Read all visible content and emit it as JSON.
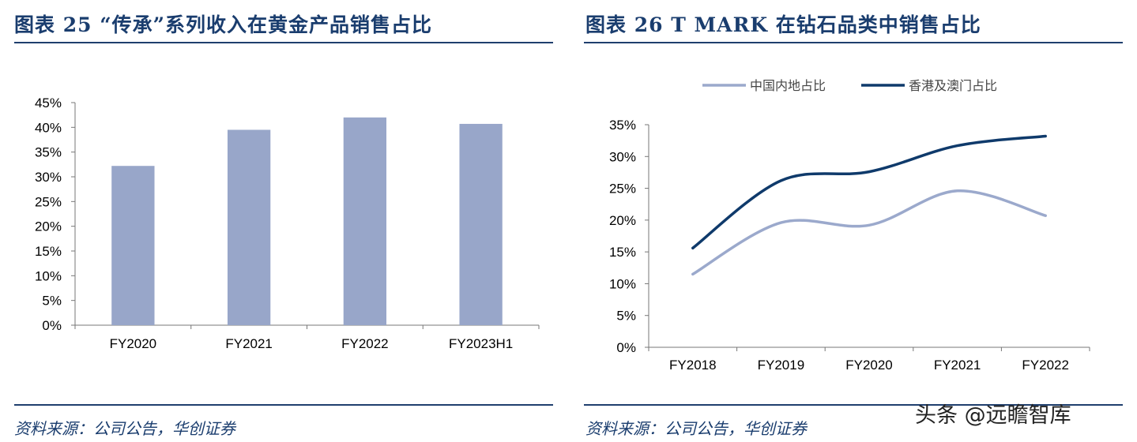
{
  "panels": [
    {
      "title": "图表 25    “传承”系列收入在黄金产品销售占比",
      "source": "资料来源：公司公告，华创证券"
    },
    {
      "title": "图表 26    T MARK 在钻石品类中销售占比",
      "source": "资料来源：公司公告，华创证券"
    }
  ],
  "watermark": "头条 @远瞻智库",
  "colors": {
    "bar": "#98a6c9",
    "mainland": "#9ba9cc",
    "hkmacau": "#0f3a6b",
    "axis": "#777777",
    "rule": "#1f3f6e"
  },
  "chart_data": [
    {
      "type": "bar",
      "title": "“传承”系列收入在黄金产品销售占比",
      "categories": [
        "FY2020",
        "FY2021",
        "FY2022",
        "FY2023H1"
      ],
      "values": [
        32.2,
        39.5,
        42.0,
        40.7
      ],
      "ylim": [
        0,
        45
      ],
      "yticks": [
        0,
        5,
        10,
        15,
        20,
        25,
        30,
        35,
        40,
        45
      ],
      "ytick_labels": [
        "0%",
        "5%",
        "10%",
        "15%",
        "20%",
        "25%",
        "30%",
        "35%",
        "40%",
        "45%"
      ],
      "xlabel": "",
      "ylabel": "",
      "grid": false
    },
    {
      "type": "line",
      "title": "T MARK 在钻石品类中销售占比",
      "categories": [
        "FY2018",
        "FY2019",
        "FY2020",
        "FY2021",
        "FY2022"
      ],
      "series": [
        {
          "name": "中国内地占比",
          "values": [
            11.5,
            19.6,
            19.2,
            24.6,
            20.7
          ]
        },
        {
          "name": "香港及澳门占比",
          "values": [
            15.6,
            26.2,
            27.6,
            31.7,
            33.2
          ]
        }
      ],
      "ylim": [
        0,
        35
      ],
      "yticks": [
        0,
        5,
        10,
        15,
        20,
        25,
        30,
        35
      ],
      "ytick_labels": [
        "0%",
        "5%",
        "10%",
        "15%",
        "20%",
        "25%",
        "30%",
        "35%"
      ],
      "legend": "top",
      "xlabel": "",
      "ylabel": "",
      "grid": false
    }
  ]
}
